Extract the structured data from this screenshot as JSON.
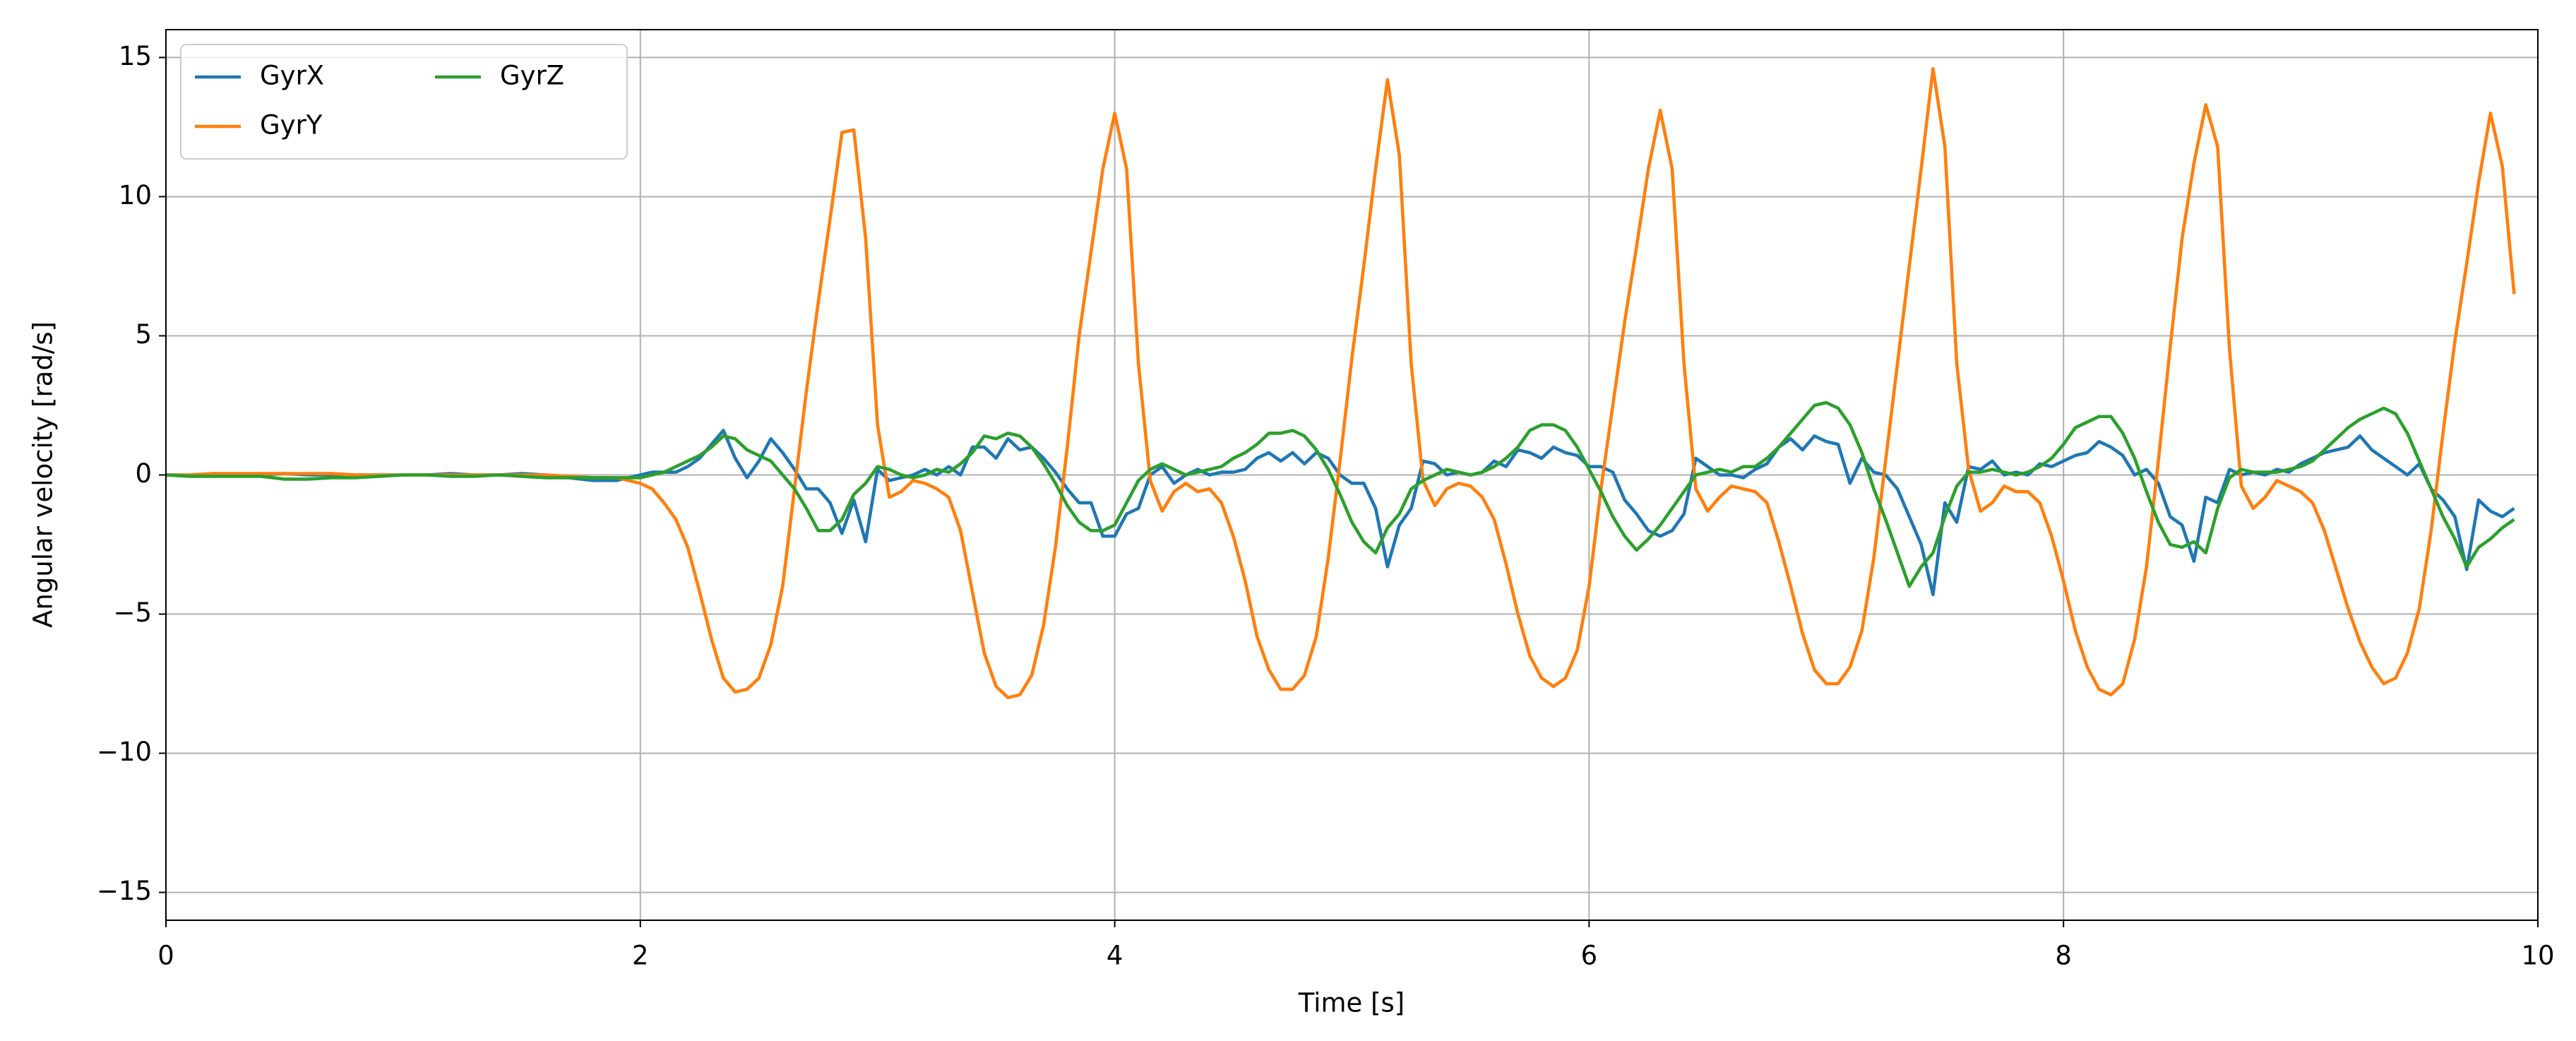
{
  "chart_data": {
    "type": "line",
    "xlabel": "Time [s]",
    "ylabel": "Angular velocity [rad/s]",
    "xlim": [
      0,
      10
    ],
    "xticks": [
      0,
      2,
      4,
      6,
      8,
      10
    ],
    "ylim": [
      -16,
      16
    ],
    "yticks": [
      {
        "value": -15,
        "label": "−15"
      },
      {
        "value": -10,
        "label": "−10"
      },
      {
        "value": -5,
        "label": "−5"
      },
      0,
      5,
      10,
      15
    ],
    "grid": true,
    "legend": "upper left",
    "x": [
      0,
      0.1,
      0.2,
      0.3,
      0.4,
      0.5,
      0.6,
      0.7,
      0.8,
      0.9,
      1,
      1.1,
      1.2,
      1.3,
      1.4,
      1.5,
      1.6,
      1.7,
      1.8,
      1.9,
      2,
      2.05,
      2.1,
      2.15,
      2.2,
      2.25,
      2.3,
      2.35,
      2.4,
      2.45,
      2.5,
      2.55,
      2.6,
      2.65,
      2.7,
      2.75,
      2.8,
      2.85,
      2.9,
      2.95,
      3,
      3.05,
      3.1,
      3.15,
      3.2,
      3.25,
      3.3,
      3.35,
      3.4,
      3.45,
      3.5,
      3.55,
      3.6,
      3.65,
      3.7,
      3.75,
      3.8,
      3.85,
      3.9,
      3.95,
      4,
      4.05,
      4.1,
      4.15,
      4.2,
      4.25,
      4.3,
      4.35,
      4.4,
      4.45,
      4.5,
      4.55,
      4.6,
      4.65,
      4.7,
      4.75,
      4.8,
      4.85,
      4.9,
      4.95,
      5,
      5.05,
      5.1,
      5.15,
      5.2,
      5.25,
      5.3,
      5.35,
      5.4,
      5.45,
      5.5,
      5.55,
      5.6,
      5.65,
      5.7,
      5.75,
      5.8,
      5.85,
      5.9,
      5.95,
      6,
      6.05,
      6.1,
      6.15,
      6.2,
      6.25,
      6.3,
      6.35,
      6.4,
      6.45,
      6.5,
      6.55,
      6.6,
      6.65,
      6.7,
      6.75,
      6.8,
      6.85,
      6.9,
      6.95,
      7,
      7.05,
      7.1,
      7.15,
      7.2,
      7.25,
      7.3,
      7.35,
      7.4,
      7.45,
      7.5,
      7.55,
      7.6,
      7.65,
      7.7,
      7.75,
      7.8,
      7.85,
      7.9,
      7.95,
      8,
      8.05,
      8.1,
      8.15,
      8.2,
      8.25,
      8.3,
      8.35,
      8.4,
      8.45,
      8.5,
      8.55,
      8.6,
      8.65,
      8.7,
      8.75,
      8.8,
      8.85,
      8.9,
      8.95,
      9,
      9.05,
      9.1,
      9.15,
      9.2,
      9.25,
      9.3,
      9.35,
      9.4,
      9.45,
      9.5,
      9.55,
      9.6,
      9.65,
      9.7,
      9.75,
      9.8,
      9.85,
      9.9
    ],
    "series": [
      {
        "name": "GyrX",
        "color": "#1f77b4",
        "values": [
          0,
          0,
          0.05,
          0,
          0,
          0.05,
          0,
          0,
          0,
          0,
          0,
          0,
          0.05,
          0,
          0,
          0.05,
          0,
          -0.1,
          -0.2,
          -0.2,
          0,
          0.1,
          0.1,
          0.1,
          0.3,
          0.6,
          1.1,
          1.6,
          0.6,
          -0.1,
          0.5,
          1.3,
          0.8,
          0.2,
          -0.5,
          -0.5,
          -1,
          -2.1,
          -0.9,
          -2.4,
          0.2,
          -0.2,
          -0.1,
          0,
          0.2,
          0,
          0.3,
          0,
          1,
          1,
          0.6,
          1.3,
          0.9,
          1,
          0.6,
          0.1,
          -0.5,
          -1,
          -1,
          -2.2,
          -2.2,
          -1.4,
          -1.2,
          0,
          0.3,
          -0.3,
          0,
          0.2,
          0,
          0.1,
          0.1,
          0.2,
          0.6,
          0.8,
          0.5,
          0.8,
          0.4,
          0.8,
          0.6,
          0,
          -0.3,
          -0.3,
          -1.2,
          -3.3,
          -1.8,
          -1.2,
          0.5,
          0.4,
          0,
          0.1,
          0,
          0.1,
          0.5,
          0.3,
          0.9,
          0.8,
          0.6,
          1,
          0.8,
          0.7,
          0.3,
          0.3,
          0.1,
          -0.9,
          -1.4,
          -2,
          -2.2,
          -2,
          -1.4,
          0.6,
          0.3,
          0,
          0,
          -0.1,
          0.2,
          0.4,
          1,
          1.3,
          0.9,
          1.4,
          1.2,
          1.1,
          -0.3,
          0.6,
          0.1,
          0,
          -0.5,
          -1.5,
          -2.5,
          -4.3,
          -1,
          -1.7,
          0.3,
          0.2,
          0.5,
          0,
          0.1,
          0,
          0.4,
          0.3,
          0.5,
          0.7,
          0.8,
          1.2,
          1,
          0.7,
          0,
          0.2,
          -0.3,
          -1.5,
          -1.8,
          -3.1,
          -0.8,
          -1,
          0.2,
          0,
          0.1,
          0,
          0.2,
          0.1,
          0.4,
          0.6,
          0.8,
          0.9,
          1,
          1.4,
          0.9,
          0.6,
          0.3,
          0,
          0.4,
          -0.5,
          -0.9,
          -1.5,
          -3.4,
          -0.9,
          -1.3,
          -1.5,
          -1.2
        ]
      },
      {
        "name": "GyrY",
        "color": "#ff7f0e",
        "values": [
          0,
          0,
          0.05,
          0.05,
          0.05,
          0.05,
          0.05,
          0.05,
          0,
          0,
          0,
          0,
          0,
          0,
          0,
          0,
          0,
          -0.05,
          -0.1,
          -0.1,
          -0.3,
          -0.5,
          -1,
          -1.6,
          -2.6,
          -4.2,
          -5.9,
          -7.3,
          -7.8,
          -7.7,
          -7.3,
          -6.1,
          -4,
          -0.5,
          3,
          6.2,
          9.2,
          12.3,
          12.4,
          8.5,
          1.8,
          -0.8,
          -0.6,
          -0.2,
          -0.3,
          -0.5,
          -0.8,
          -2,
          -4.2,
          -6.4,
          -7.6,
          -8,
          -7.9,
          -7.2,
          -5.4,
          -2.6,
          1,
          5,
          8,
          11,
          13,
          11,
          4,
          -0.2,
          -1.3,
          -0.6,
          -0.3,
          -0.6,
          -0.5,
          -1,
          -2.2,
          -3.8,
          -5.8,
          -7,
          -7.7,
          -7.7,
          -7.2,
          -5.8,
          -3,
          0.5,
          4.2,
          7.5,
          11,
          14.2,
          11.5,
          4,
          -0.2,
          -1.1,
          -0.5,
          -0.3,
          -0.4,
          -0.8,
          -1.6,
          -3.2,
          -5,
          -6.5,
          -7.3,
          -7.6,
          -7.3,
          -6.3,
          -4,
          -0.5,
          2.5,
          5.5,
          8.2,
          11,
          13.1,
          11,
          4,
          -0.5,
          -1.3,
          -0.8,
          -0.4,
          -0.5,
          -0.6,
          -1,
          -2.4,
          -4,
          -5.7,
          -7,
          -7.5,
          -7.5,
          -6.9,
          -5.6,
          -3,
          0.5,
          4,
          7.5,
          11,
          14.6,
          11.8,
          4,
          0.2,
          -1.3,
          -1,
          -0.4,
          -0.6,
          -0.6,
          -1,
          -2.2,
          -3.8,
          -5.6,
          -6.9,
          -7.7,
          -7.9,
          -7.5,
          -5.9,
          -3.3,
          0.5,
          4.6,
          8.5,
          11.2,
          13.3,
          11.8,
          4.5,
          -0.4,
          -1.2,
          -0.8,
          -0.2,
          -0.4,
          -0.6,
          -1,
          -2,
          -3.4,
          -4.8,
          -6,
          -6.9,
          -7.5,
          -7.3,
          -6.4,
          -4.8,
          -2,
          1.5,
          4.8,
          7.6,
          10.5,
          13,
          11.1,
          6.5
        ]
      },
      {
        "name": "GyrZ",
        "color": "#2ca02c",
        "values": [
          0,
          -0.05,
          -0.05,
          -0.05,
          -0.05,
          -0.15,
          -0.15,
          -0.1,
          -0.1,
          -0.05,
          0,
          0,
          -0.05,
          -0.05,
          0,
          -0.05,
          -0.1,
          -0.1,
          -0.1,
          -0.1,
          -0.1,
          0,
          0.1,
          0.3,
          0.5,
          0.7,
          1,
          1.4,
          1.3,
          0.9,
          0.7,
          0.5,
          0,
          -0.5,
          -1.2,
          -2,
          -2,
          -1.6,
          -0.7,
          -0.3,
          0.3,
          0.2,
          0,
          -0.1,
          0,
          0.2,
          0.1,
          0.4,
          0.8,
          1.4,
          1.3,
          1.5,
          1.4,
          1,
          0.4,
          -0.3,
          -1.1,
          -1.7,
          -2,
          -2,
          -1.8,
          -1,
          -0.2,
          0.2,
          0.4,
          0.2,
          0,
          0.1,
          0.2,
          0.3,
          0.6,
          0.8,
          1.1,
          1.5,
          1.5,
          1.6,
          1.4,
          0.9,
          0.2,
          -0.7,
          -1.7,
          -2.4,
          -2.8,
          -1.9,
          -1.4,
          -0.5,
          -0.2,
          0,
          0.2,
          0.1,
          0,
          0.1,
          0.3,
          0.6,
          1,
          1.6,
          1.8,
          1.8,
          1.6,
          1,
          0.2,
          -0.6,
          -1.5,
          -2.2,
          -2.7,
          -2.3,
          -1.8,
          -1.2,
          -0.6,
          0,
          0.1,
          0.2,
          0.1,
          0.3,
          0.3,
          0.6,
          1,
          1.5,
          2,
          2.5,
          2.6,
          2.4,
          1.8,
          0.8,
          -0.5,
          -1.6,
          -2.8,
          -4,
          -3.3,
          -2.8,
          -1.5,
          -0.4,
          0.1,
          0.1,
          0.2,
          0.1,
          0,
          0.1,
          0.3,
          0.6,
          1.1,
          1.7,
          1.9,
          2.1,
          2.1,
          1.5,
          0.6,
          -0.6,
          -1.7,
          -2.5,
          -2.6,
          -2.4,
          -2.8,
          -1.2,
          -0.1,
          0.2,
          0.1,
          0.1,
          0.1,
          0.2,
          0.3,
          0.5,
          0.9,
          1.3,
          1.7,
          2,
          2.2,
          2.4,
          2.2,
          1.5,
          0.5,
          -0.5,
          -1.5,
          -2.3,
          -3.3,
          -2.6,
          -2.3,
          -1.9,
          -1.6
        ]
      }
    ]
  }
}
